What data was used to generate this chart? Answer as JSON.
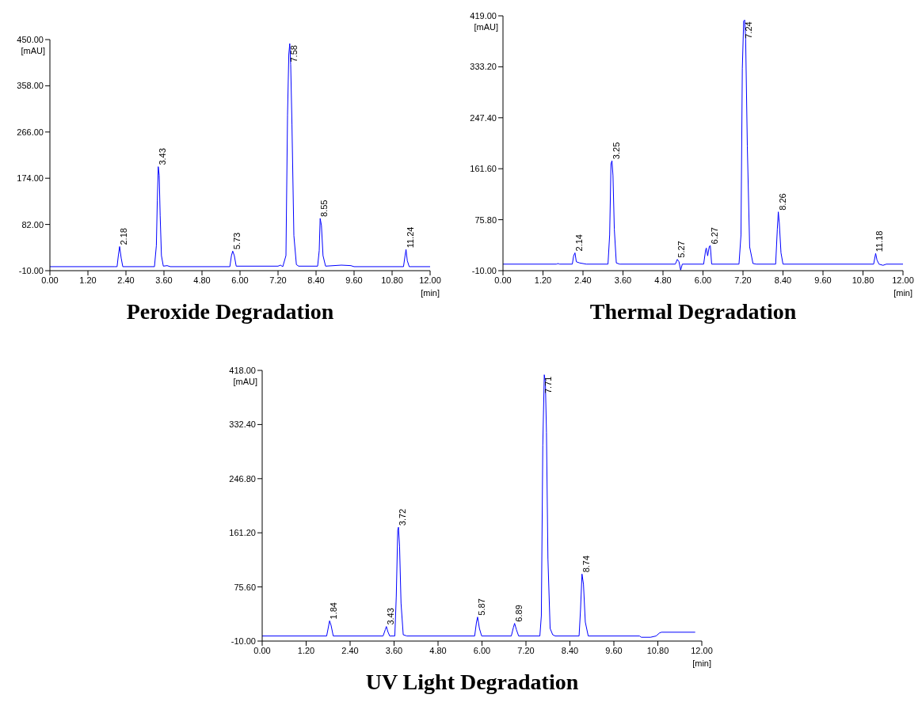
{
  "chart_data": [
    {
      "type": "line",
      "title": "Peroxide Degradation",
      "xlabel": "[min]",
      "ylabel": "[mAU]",
      "xlim": [
        0,
        12
      ],
      "ylim": [
        -10,
        450
      ],
      "xticks": [
        {
          "value": 0,
          "label": "0.00"
        },
        {
          "value": 1.2,
          "label": "1.20"
        },
        {
          "value": 2.4,
          "label": "2.40"
        },
        {
          "value": 3.6,
          "label": "3.60"
        },
        {
          "value": 4.8,
          "label": "4.80"
        },
        {
          "value": 6,
          "label": "6.00"
        },
        {
          "value": 7.2,
          "label": "7.20"
        },
        {
          "value": 8.4,
          "label": "8.40"
        },
        {
          "value": 9.6,
          "label": "9.60"
        },
        {
          "value": 10.8,
          "label": "10.80"
        },
        {
          "value": 12,
          "label": "12.00"
        }
      ],
      "yticks": [
        {
          "value": -10,
          "label": "-10.00"
        },
        {
          "value": 82,
          "label": "82.00"
        },
        {
          "value": 174,
          "label": "174.00"
        },
        {
          "value": 266,
          "label": "266.00"
        },
        {
          "value": 358,
          "label": "358.00"
        },
        {
          "value": 450,
          "label": "450.00"
        }
      ],
      "grid": false,
      "legend": false,
      "marker": "none",
      "line_style": "solid",
      "series": [
        {
          "color": "#0000ff",
          "x": [
            0,
            2.03,
            2.12,
            2.16,
            2.2,
            2.25,
            2.3,
            3.3,
            3.36,
            3.39,
            3.42,
            3.45,
            3.48,
            3.52,
            3.58,
            3.7,
            3.8,
            5.68,
            5.73,
            5.77,
            5.82,
            5.88,
            7.2,
            7.28,
            7.35,
            7.45,
            7.5,
            7.54,
            7.57,
            7.6,
            7.64,
            7.7,
            7.78,
            7.85,
            8.45,
            8.5,
            8.53,
            8.57,
            8.62,
            8.7,
            9.2,
            9.5,
            9.6,
            11.16,
            11.21,
            11.24,
            11.28,
            11.34,
            12
          ],
          "values": [
            -2,
            -2,
            -2,
            20,
            38,
            15,
            -2,
            -2,
            40,
            130,
            197,
            180,
            100,
            20,
            -1,
            0,
            -2,
            -2,
            20,
            29,
            20,
            -1,
            -1,
            1,
            -2,
            20,
            300,
            420,
            442,
            400,
            280,
            60,
            2,
            -1,
            -1,
            30,
            94,
            80,
            20,
            -1,
            1,
            0,
            -2,
            -2,
            20,
            32,
            10,
            -2,
            -2
          ]
        }
      ],
      "annotations": [
        {
          "text": "2.18",
          "x": 2.2,
          "y": 38
        },
        {
          "text": "3.43",
          "x": 3.42,
          "y": 197
        },
        {
          "text": "5.73",
          "x": 5.77,
          "y": 29
        },
        {
          "text": "7.58",
          "x": 7.57,
          "y": 442
        },
        {
          "text": "8.55",
          "x": 8.53,
          "y": 94
        },
        {
          "text": "11.24",
          "x": 11.24,
          "y": 32
        }
      ]
    },
    {
      "type": "line",
      "title": "Thermal Degradation",
      "xlabel": "[min]",
      "ylabel": "[mAU]",
      "xlim": [
        0,
        12
      ],
      "ylim": [
        -10,
        419
      ],
      "xticks": [
        {
          "value": 0,
          "label": "0.00"
        },
        {
          "value": 1.2,
          "label": "1.20"
        },
        {
          "value": 2.4,
          "label": "2.40"
        },
        {
          "value": 3.6,
          "label": "3.60"
        },
        {
          "value": 4.8,
          "label": "4.80"
        },
        {
          "value": 6,
          "label": "6.00"
        },
        {
          "value": 7.2,
          "label": "7.20"
        },
        {
          "value": 8.4,
          "label": "8.40"
        },
        {
          "value": 9.6,
          "label": "9.60"
        },
        {
          "value": 10.8,
          "label": "10.80"
        },
        {
          "value": 12,
          "label": "12.00"
        }
      ],
      "yticks": [
        {
          "value": -10,
          "label": "-10.00"
        },
        {
          "value": 75.8,
          "label": "75.80"
        },
        {
          "value": 161.6,
          "label": "161.60"
        },
        {
          "value": 247.4,
          "label": "247.40"
        },
        {
          "value": 333.2,
          "label": "333.20"
        },
        {
          "value": 419,
          "label": "419.00"
        }
      ],
      "grid": false,
      "legend": false,
      "marker": "none",
      "line_style": "solid",
      "series": [
        {
          "color": "#0000ff",
          "x": [
            0,
            1.6,
            1.65,
            1.7,
            2.08,
            2.12,
            2.16,
            2.2,
            2.3,
            2.5,
            3.15,
            3.2,
            3.24,
            3.27,
            3.3,
            3.34,
            3.4,
            3.5,
            5.17,
            5.23,
            5.28,
            5.33,
            5.38,
            6.02,
            6.08,
            6.1,
            6.14,
            6.19,
            6.22,
            6.26,
            7.08,
            7.14,
            7.18,
            7.22,
            7.25,
            7.28,
            7.33,
            7.4,
            7.5,
            7.6,
            8.18,
            8.23,
            8.26,
            8.29,
            8.34,
            8.4,
            11.12,
            11.18,
            11.22,
            11.28,
            11.4,
            11.5,
            12
          ],
          "values": [
            1,
            1,
            2,
            1,
            1,
            15,
            20,
            5,
            3,
            1,
            1,
            50,
            170,
            175,
            150,
            60,
            3,
            1,
            1,
            9,
            5,
            -9,
            1,
            1,
            25,
            28,
            15,
            31,
            32,
            1,
            1,
            50,
            330,
            410,
            412,
            380,
            200,
            30,
            2,
            1,
            1,
            60,
            89,
            70,
            20,
            1,
            1,
            19,
            8,
            1,
            -1,
            1,
            1
          ]
        }
      ],
      "annotations": [
        {
          "text": "2.14",
          "x": 2.16,
          "y": 20
        },
        {
          "text": "3.25",
          "x": 3.27,
          "y": 175
        },
        {
          "text": "5.27",
          "x": 5.23,
          "y": 9
        },
        {
          "text": "6.27",
          "x": 6.22,
          "y": 32
        },
        {
          "text": "7.24",
          "x": 7.25,
          "y": 412
        },
        {
          "text": "8.26",
          "x": 8.26,
          "y": 89
        },
        {
          "text": "11.18",
          "x": 11.18,
          "y": 19
        }
      ]
    },
    {
      "type": "line",
      "title": "UV Light Degradation",
      "xlabel": "[min]",
      "ylabel": "[mAU]",
      "xlim": [
        0,
        12
      ],
      "ylim": [
        -10,
        418
      ],
      "xticks": [
        {
          "value": 0,
          "label": "0.00"
        },
        {
          "value": 1.2,
          "label": "1.20"
        },
        {
          "value": 2.4,
          "label": "2.40"
        },
        {
          "value": 3.6,
          "label": "3.60"
        },
        {
          "value": 4.8,
          "label": "4.80"
        },
        {
          "value": 6,
          "label": "6.00"
        },
        {
          "value": 7.2,
          "label": "7.20"
        },
        {
          "value": 8.4,
          "label": "8.40"
        },
        {
          "value": 9.6,
          "label": "9.60"
        },
        {
          "value": 10.8,
          "label": "10.80"
        },
        {
          "value": 12,
          "label": "12.00"
        }
      ],
      "yticks": [
        {
          "value": -10,
          "label": "-10.00"
        },
        {
          "value": 75.6,
          "label": "75.60"
        },
        {
          "value": 161.2,
          "label": "161.20"
        },
        {
          "value": 246.8,
          "label": "246.80"
        },
        {
          "value": 332.4,
          "label": "332.40"
        },
        {
          "value": 418,
          "label": "418.00"
        }
      ],
      "grid": false,
      "legend": false,
      "marker": "none",
      "line_style": "solid",
      "series": [
        {
          "color": "#0000ff",
          "x": [
            0,
            1.76,
            1.8,
            1.84,
            1.88,
            1.94,
            3.3,
            3.36,
            3.39,
            3.43,
            3.48,
            3.62,
            3.66,
            3.7,
            3.72,
            3.75,
            3.79,
            3.85,
            3.95,
            5.8,
            5.85,
            5.88,
            5.93,
            5.99,
            6.8,
            6.86,
            6.89,
            6.94,
            7.0,
            7.58,
            7.62,
            7.66,
            7.7,
            7.73,
            7.76,
            7.8,
            7.86,
            7.93,
            8.0,
            8.65,
            8.69,
            8.73,
            8.77,
            8.82,
            8.9,
            10.3,
            10.35,
            10.6,
            10.75,
            10.85,
            10.9,
            11.82
          ],
          "values": [
            -2,
            -2,
            10,
            22,
            15,
            -2,
            -2,
            8,
            13,
            5,
            -2,
            -2,
            60,
            165,
            170,
            140,
            50,
            0,
            -2,
            -2,
            20,
            28,
            10,
            -2,
            -2,
            12,
            18,
            8,
            -2,
            -2,
            30,
            300,
            411,
            400,
            320,
            120,
            10,
            0,
            -2,
            -2,
            40,
            96,
            80,
            20,
            -2,
            -2,
            -4,
            -4,
            -2,
            3,
            4,
            4
          ]
        }
      ],
      "annotations": [
        {
          "text": "1.84",
          "x": 1.84,
          "y": 22
        },
        {
          "text": "3.43",
          "x": 3.39,
          "y": 13
        },
        {
          "text": "3.72",
          "x": 3.72,
          "y": 170
        },
        {
          "text": "5.87",
          "x": 5.88,
          "y": 28
        },
        {
          "text": "6.89",
          "x": 6.89,
          "y": 18
        },
        {
          "text": "7.71",
          "x": 7.7,
          "y": 411
        },
        {
          "text": "8.74",
          "x": 8.73,
          "y": 96
        }
      ]
    }
  ]
}
